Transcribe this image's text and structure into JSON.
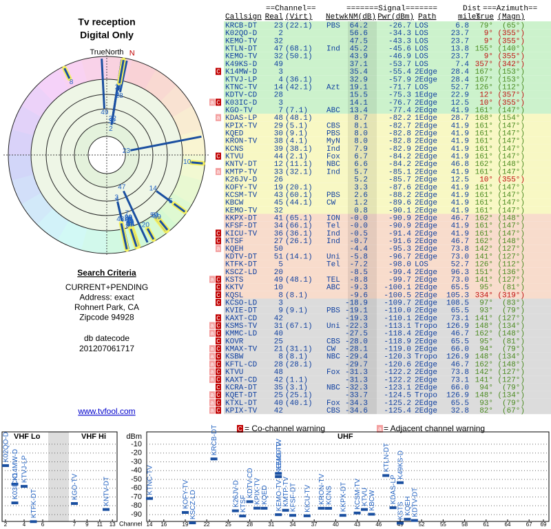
{
  "header": {
    "title": "Tv reception",
    "subtitle": "Digital Only"
  },
  "polar": {
    "north_label": "TrueNorth",
    "magnetic_label": "N"
  },
  "criteria": {
    "heading": "Search Criteria",
    "lines": [
      "CURRENT+PENDING",
      "Address: exact",
      "Rohnert Park, CA",
      "Zipcode 94928"
    ]
  },
  "db": {
    "label": "db datecode",
    "value": "201207061717"
  },
  "link": "www.tvfool.com",
  "table": {
    "group_headers": [
      "==Channel==",
      "=======Signal=======",
      "Dist",
      "===Azimuth=="
    ],
    "columns": [
      "Callsign",
      "Real",
      "(Virt)",
      "Netwk",
      "NM(dB)",
      "Pwr(dBm)",
      "Path",
      "miles",
      "True",
      "(Magn)"
    ],
    "rows": [
      {
        "callsign": "KRCB-DT",
        "real": "23",
        "virt": "(22.1)",
        "netwk": "PBS",
        "nm": "64.2",
        "pwr": "-26.7",
        "path": "LOS",
        "dist": "6.8",
        "true": "79°",
        "magn": "(65°)"
      },
      {
        "callsign": "K02QO-D",
        "real": "2",
        "nm": "56.6",
        "pwr": "-34.3",
        "path": "LOS",
        "dist": "23.7",
        "true": "9°",
        "magn": "(355°)"
      },
      {
        "callsign": "KEMO-TV",
        "real": "32",
        "nm": "47.5",
        "pwr": "-43.3",
        "path": "LOS",
        "dist": "23.7",
        "true": "9°",
        "magn": "(355°)"
      },
      {
        "callsign": "KTLN-DT",
        "real": "47",
        "virt": "(68.1)",
        "netwk": "Ind",
        "nm": "45.2",
        "pwr": "-45.6",
        "path": "LOS",
        "dist": "13.8",
        "true": "155°",
        "magn": "(140°)"
      },
      {
        "callsign": "KEMO-TV",
        "real": "32",
        "virt": "(50.1)",
        "nm": "43.9",
        "pwr": "-46.9",
        "path": "LOS",
        "dist": "23.7",
        "true": "9°",
        "magn": "(355°)"
      },
      {
        "callsign": "K49KS-D",
        "real": "49",
        "nm": "37.1",
        "pwr": "-53.7",
        "path": "LOS",
        "dist": "7.4",
        "true": "357°",
        "magn": "(342°)"
      },
      {
        "callsign": "K14MW-D",
        "real": "3",
        "nm": "35.4",
        "pwr": "-55.4",
        "path": "2Edge",
        "dist": "28.4",
        "true": "167°",
        "magn": "(153°)",
        "warnings": [
          "C"
        ]
      },
      {
        "callsign": "KTVJ-LP",
        "real": "4",
        "virt": "(36.1)",
        "nm": "32.9",
        "pwr": "-57.9",
        "path": "2Edge",
        "dist": "28.4",
        "true": "167°",
        "magn": "(153°)"
      },
      {
        "callsign": "KTNC-TV",
        "real": "14",
        "virt": "(42.1)",
        "netwk": "Azt",
        "nm": "19.1",
        "pwr": "-71.7",
        "path": "LOS",
        "dist": "52.7",
        "true": "126°",
        "magn": "(112°)"
      },
      {
        "callsign": "KDTV-CD",
        "real": "28",
        "nm": "15.5",
        "pwr": "-75.3",
        "path": "1Edge",
        "dist": "22.9",
        "true": "12°",
        "magn": "(357°)"
      },
      {
        "callsign": "K03IC-D",
        "real": "3",
        "nm": "14.1",
        "pwr": "-76.7",
        "path": "2Edge",
        "dist": "12.5",
        "true": "10°",
        "magn": "(355°)",
        "warnings": [
          "a",
          "C"
        ]
      },
      {
        "callsign": "KGO-TV",
        "real": "7",
        "virt": "(7.1)",
        "netwk": "ABC",
        "nm": "13.4",
        "pwr": "-77.4",
        "path": "2Edge",
        "dist": "41.9",
        "true": "161°",
        "magn": "(147°)"
      },
      {
        "callsign": "KDAS-LP",
        "real": "48",
        "virt": "(48.1)",
        "nm": "8.7",
        "pwr": "-82.2",
        "path": "1Edge",
        "dist": "28.7",
        "true": "168°",
        "magn": "(154°)",
        "warnings": [
          "a"
        ]
      },
      {
        "callsign": "KPIX-TV",
        "real": "29",
        "virt": "(5.1)",
        "netwk": "CBS",
        "nm": "8.1",
        "pwr": "-82.7",
        "path": "2Edge",
        "dist": "41.9",
        "true": "161°",
        "magn": "(147°)"
      },
      {
        "callsign": "KQED",
        "real": "30",
        "virt": "(9.1)",
        "netwk": "PBS",
        "nm": "8.0",
        "pwr": "-82.8",
        "path": "2Edge",
        "dist": "41.9",
        "true": "161°",
        "magn": "(147°)"
      },
      {
        "callsign": "KRON-TV",
        "real": "38",
        "virt": "(4.1)",
        "netwk": "MyN",
        "nm": "8.0",
        "pwr": "-82.8",
        "path": "2Edge",
        "dist": "41.9",
        "true": "161°",
        "magn": "(147°)"
      },
      {
        "callsign": "KCNS",
        "real": "39",
        "virt": "(38.1)",
        "netwk": "Ind",
        "nm": "7.9",
        "pwr": "-82.9",
        "path": "2Edge",
        "dist": "41.9",
        "true": "161°",
        "magn": "(147°)"
      },
      {
        "callsign": "KTVU",
        "real": "44",
        "virt": "(2.1)",
        "netwk": "Fox",
        "nm": "6.7",
        "pwr": "-84.2",
        "path": "2Edge",
        "dist": "41.9",
        "true": "161°",
        "magn": "(147°)",
        "warnings": [
          "C"
        ]
      },
      {
        "callsign": "KNTV-DT",
        "real": "12",
        "virt": "(11.1)",
        "netwk": "NBC",
        "nm": "6.6",
        "pwr": "-84.2",
        "path": "2Edge",
        "dist": "46.8",
        "true": "162°",
        "magn": "(148°)"
      },
      {
        "callsign": "KMTP-TV",
        "real": "33",
        "virt": "(32.1)",
        "netwk": "Ind",
        "nm": "5.7",
        "pwr": "-85.1",
        "path": "2Edge",
        "dist": "41.9",
        "true": "161°",
        "magn": "(147°)",
        "warnings": [
          "a"
        ]
      },
      {
        "callsign": "K26JV-D",
        "real": "26",
        "nm": "5.2",
        "pwr": "-85.7",
        "path": "2Edge",
        "dist": "12.5",
        "true": "10°",
        "magn": "(355°)"
      },
      {
        "callsign": "KOFY-TV",
        "real": "19",
        "virt": "(20.1)",
        "nm": "3.3",
        "pwr": "-87.6",
        "path": "2Edge",
        "dist": "41.9",
        "true": "161°",
        "magn": "(147°)"
      },
      {
        "callsign": "KCSM-TV",
        "real": "43",
        "virt": "(60.1)",
        "netwk": "PBS",
        "nm": "2.6",
        "pwr": "-88.2",
        "path": "2Edge",
        "dist": "41.9",
        "true": "161°",
        "magn": "(147°)"
      },
      {
        "callsign": "KBCW",
        "real": "45",
        "virt": "(44.1)",
        "netwk": "CW",
        "nm": "1.2",
        "pwr": "-89.6",
        "path": "2Edge",
        "dist": "41.9",
        "true": "161°",
        "magn": "(147°)"
      },
      {
        "callsign": "KEMO-TV",
        "real": "32",
        "nm": "0.8",
        "pwr": "-90.1",
        "path": "2Edge",
        "dist": "41.9",
        "true": "161°",
        "magn": "(147°)"
      },
      {
        "callsign": "KKPX-DT",
        "real": "41",
        "virt": "(65.1)",
        "netwk": "ION",
        "nm": "-0.0",
        "pwr": "-90.9",
        "path": "2Edge",
        "dist": "46.7",
        "true": "162°",
        "magn": "(148°)"
      },
      {
        "callsign": "KFSF-DT",
        "real": "34",
        "virt": "(66.1)",
        "netwk": "Tel",
        "nm": "-0.0",
        "pwr": "-90.9",
        "path": "2Edge",
        "dist": "41.9",
        "true": "161°",
        "magn": "(147°)"
      },
      {
        "callsign": "KICU-TV",
        "real": "36",
        "virt": "(36.1)",
        "netwk": "Ind",
        "nm": "-0.5",
        "pwr": "-91.4",
        "path": "2Edge",
        "dist": "41.9",
        "true": "161°",
        "magn": "(147°)",
        "warnings": [
          "C"
        ]
      },
      {
        "callsign": "KTSF",
        "real": "27",
        "virt": "(26.1)",
        "netwk": "Ind",
        "nm": "-0.7",
        "pwr": "-91.6",
        "path": "2Edge",
        "dist": "46.7",
        "true": "162°",
        "magn": "(148°)",
        "warnings": [
          "C"
        ]
      },
      {
        "callsign": "KQEH",
        "real": "50",
        "nm": "-4.4",
        "pwr": "-95.3",
        "path": "2Edge",
        "dist": "73.8",
        "true": "142°",
        "magn": "(127°)",
        "warnings": [
          "a"
        ]
      },
      {
        "callsign": "KDTV-DT",
        "real": "51",
        "virt": "(14.1)",
        "netwk": "Uni",
        "nm": "-5.8",
        "pwr": "-96.7",
        "path": "2Edge",
        "dist": "73.0",
        "true": "141°",
        "magn": "(127°)"
      },
      {
        "callsign": "KTFK-DT",
        "real": "5",
        "netwk": "Tel",
        "nm": "-7.2",
        "pwr": "-98.0",
        "path": "LOS",
        "dist": "52.7",
        "true": "126°",
        "magn": "(112°)"
      },
      {
        "callsign": "KSCZ-LD",
        "real": "20",
        "nm": "-8.5",
        "pwr": "-99.4",
        "path": "2Edge",
        "dist": "96.3",
        "true": "151°",
        "magn": "(136°)"
      },
      {
        "callsign": "KSTS",
        "real": "49",
        "virt": "(48.1)",
        "netwk": "TEL",
        "nm": "-8.8",
        "pwr": "-99.7",
        "path": "2Edge",
        "dist": "73.0",
        "true": "141°",
        "magn": "(127°)",
        "warnings": [
          "a",
          "C"
        ]
      },
      {
        "callsign": "KKTV",
        "real": "10",
        "netwk": "ABC",
        "nm": "-9.3",
        "pwr": "-100.1",
        "path": "2Edge",
        "dist": "65.5",
        "true": "95°",
        "magn": "(81°)",
        "warnings": [
          "C"
        ]
      },
      {
        "callsign": "KQSL",
        "real": "8",
        "virt": "(8.1)",
        "nm": "-9.6",
        "pwr": "-100.5",
        "path": "2Edge",
        "dist": "105.3",
        "true": "334°",
        "magn": "(319°)",
        "warnings": [
          "C"
        ]
      },
      {
        "callsign": "KCSO-LD",
        "real": "3",
        "nm": "-18.9",
        "pwr": "-109.7",
        "path": "2Edge",
        "dist": "108.5",
        "true": "97°",
        "magn": "(83°)",
        "warnings": [
          "C"
        ]
      },
      {
        "callsign": "KVIE-DT",
        "real": "9",
        "virt": "(9.1)",
        "netwk": "PBS",
        "nm": "-19.1",
        "pwr": "-110.0",
        "path": "2Edge",
        "dist": "65.5",
        "true": "93°",
        "magn": "(79°)"
      },
      {
        "callsign": "KAXT-CD",
        "real": "42",
        "nm": "-19.3",
        "pwr": "-110.1",
        "path": "2Edge",
        "dist": "73.1",
        "true": "141°",
        "magn": "(127°)",
        "warnings": [
          "C"
        ]
      },
      {
        "callsign": "KSMS-TV",
        "real": "31",
        "virt": "(67.1)",
        "netwk": "Uni",
        "nm": "-22.3",
        "pwr": "-113.1",
        "path": "Tropo",
        "dist": "126.9",
        "true": "148°",
        "magn": "(134°)",
        "warnings": [
          "a",
          "C"
        ]
      },
      {
        "callsign": "KMMC-LD",
        "real": "40",
        "nm": "-27.5",
        "pwr": "-118.4",
        "path": "2Edge",
        "dist": "46.7",
        "true": "162°",
        "magn": "(148°)",
        "warnings": [
          "a",
          "C"
        ]
      },
      {
        "callsign": "KOVR",
        "real": "25",
        "netwk": "CBS",
        "nm": "-28.0",
        "pwr": "-118.9",
        "path": "2Edge",
        "dist": "65.5",
        "true": "95°",
        "magn": "(81°)",
        "warnings": [
          "C"
        ]
      },
      {
        "callsign": "KMAX-TV",
        "real": "21",
        "virt": "(31.1)",
        "netwk": "CW",
        "nm": "-28.1",
        "pwr": "-119.0",
        "path": "2Edge",
        "dist": "66.0",
        "true": "94°",
        "magn": "(79°)",
        "warnings": [
          "a",
          "C"
        ]
      },
      {
        "callsign": "KSBW",
        "real": "8",
        "virt": "(8.1)",
        "netwk": "NBC",
        "nm": "-29.4",
        "pwr": "-120.3",
        "path": "Tropo",
        "dist": "126.9",
        "true": "148°",
        "magn": "(134°)",
        "warnings": [
          "a",
          "C"
        ]
      },
      {
        "callsign": "KFTL-CD",
        "real": "28",
        "virt": "(28.1)",
        "nm": "-29.7",
        "pwr": "-120.6",
        "path": "2Edge",
        "dist": "46.7",
        "true": "162°",
        "magn": "(148°)",
        "warnings": [
          "a",
          "C"
        ]
      },
      {
        "callsign": "KTVU",
        "real": "48",
        "netwk": "Fox",
        "nm": "-31.3",
        "pwr": "-122.2",
        "path": "2Edge",
        "dist": "73.8",
        "true": "142°",
        "magn": "(127°)",
        "warnings": [
          "a",
          "C"
        ]
      },
      {
        "callsign": "KAXT-CD",
        "real": "42",
        "virt": "(1.1)",
        "nm": "-31.3",
        "pwr": "-122.2",
        "path": "2Edge",
        "dist": "73.1",
        "true": "141°",
        "magn": "(127°)",
        "warnings": [
          "a",
          "C"
        ]
      },
      {
        "callsign": "KCRA-DT",
        "real": "35",
        "virt": "(3.1)",
        "netwk": "NBC",
        "nm": "-32.3",
        "pwr": "-123.1",
        "path": "2Edge",
        "dist": "66.0",
        "true": "94°",
        "magn": "(79°)",
        "warnings": [
          "C"
        ]
      },
      {
        "callsign": "KQET-DT",
        "real": "25",
        "virt": "(25.1)",
        "nm": "-33.7",
        "pwr": "-124.5",
        "path": "Tropo",
        "dist": "126.9",
        "true": "148°",
        "magn": "(134°)",
        "warnings": [
          "a",
          "C"
        ]
      },
      {
        "callsign": "KTXL-DT",
        "real": "40",
        "virt": "(40.1)",
        "netwk": "Fox",
        "nm": "-34.3",
        "pwr": "-125.2",
        "path": "2Edge",
        "dist": "65.5",
        "true": "93°",
        "magn": "(79°)",
        "warnings": [
          "a",
          "C"
        ]
      },
      {
        "callsign": "KPIX-TV",
        "real": "42",
        "netwk": "CBS",
        "nm": "-34.6",
        "pwr": "-125.4",
        "path": "2Edge",
        "dist": "32.8",
        "true": "82°",
        "magn": "(67°)",
        "warnings": [
          "a",
          "C"
        ]
      }
    ]
  },
  "spectrum": {
    "legend": [
      {
        "icon": "C",
        "text": "= Co-channel warning"
      },
      {
        "icon": "a",
        "text": "= Adjacent channel warning"
      }
    ],
    "vhf_lo_label": "VHF Lo",
    "vhf_hi_label": "VHF Hi",
    "uhf_label": "UHF",
    "y_label": "dBm",
    "x_label": "Channel",
    "ylim": [
      -3,
      -97
    ],
    "yticks": [
      -10,
      -20,
      -30,
      -40,
      -50,
      -60,
      -70,
      -80,
      -90
    ],
    "vhf_ticks": [
      2,
      4,
      6,
      7,
      9,
      11,
      13
    ],
    "uhf_ticks": [
      14,
      16,
      19,
      22,
      25,
      28,
      31,
      34,
      37,
      40,
      43,
      46,
      49,
      52,
      55,
      58,
      61,
      64,
      67,
      69
    ]
  }
}
